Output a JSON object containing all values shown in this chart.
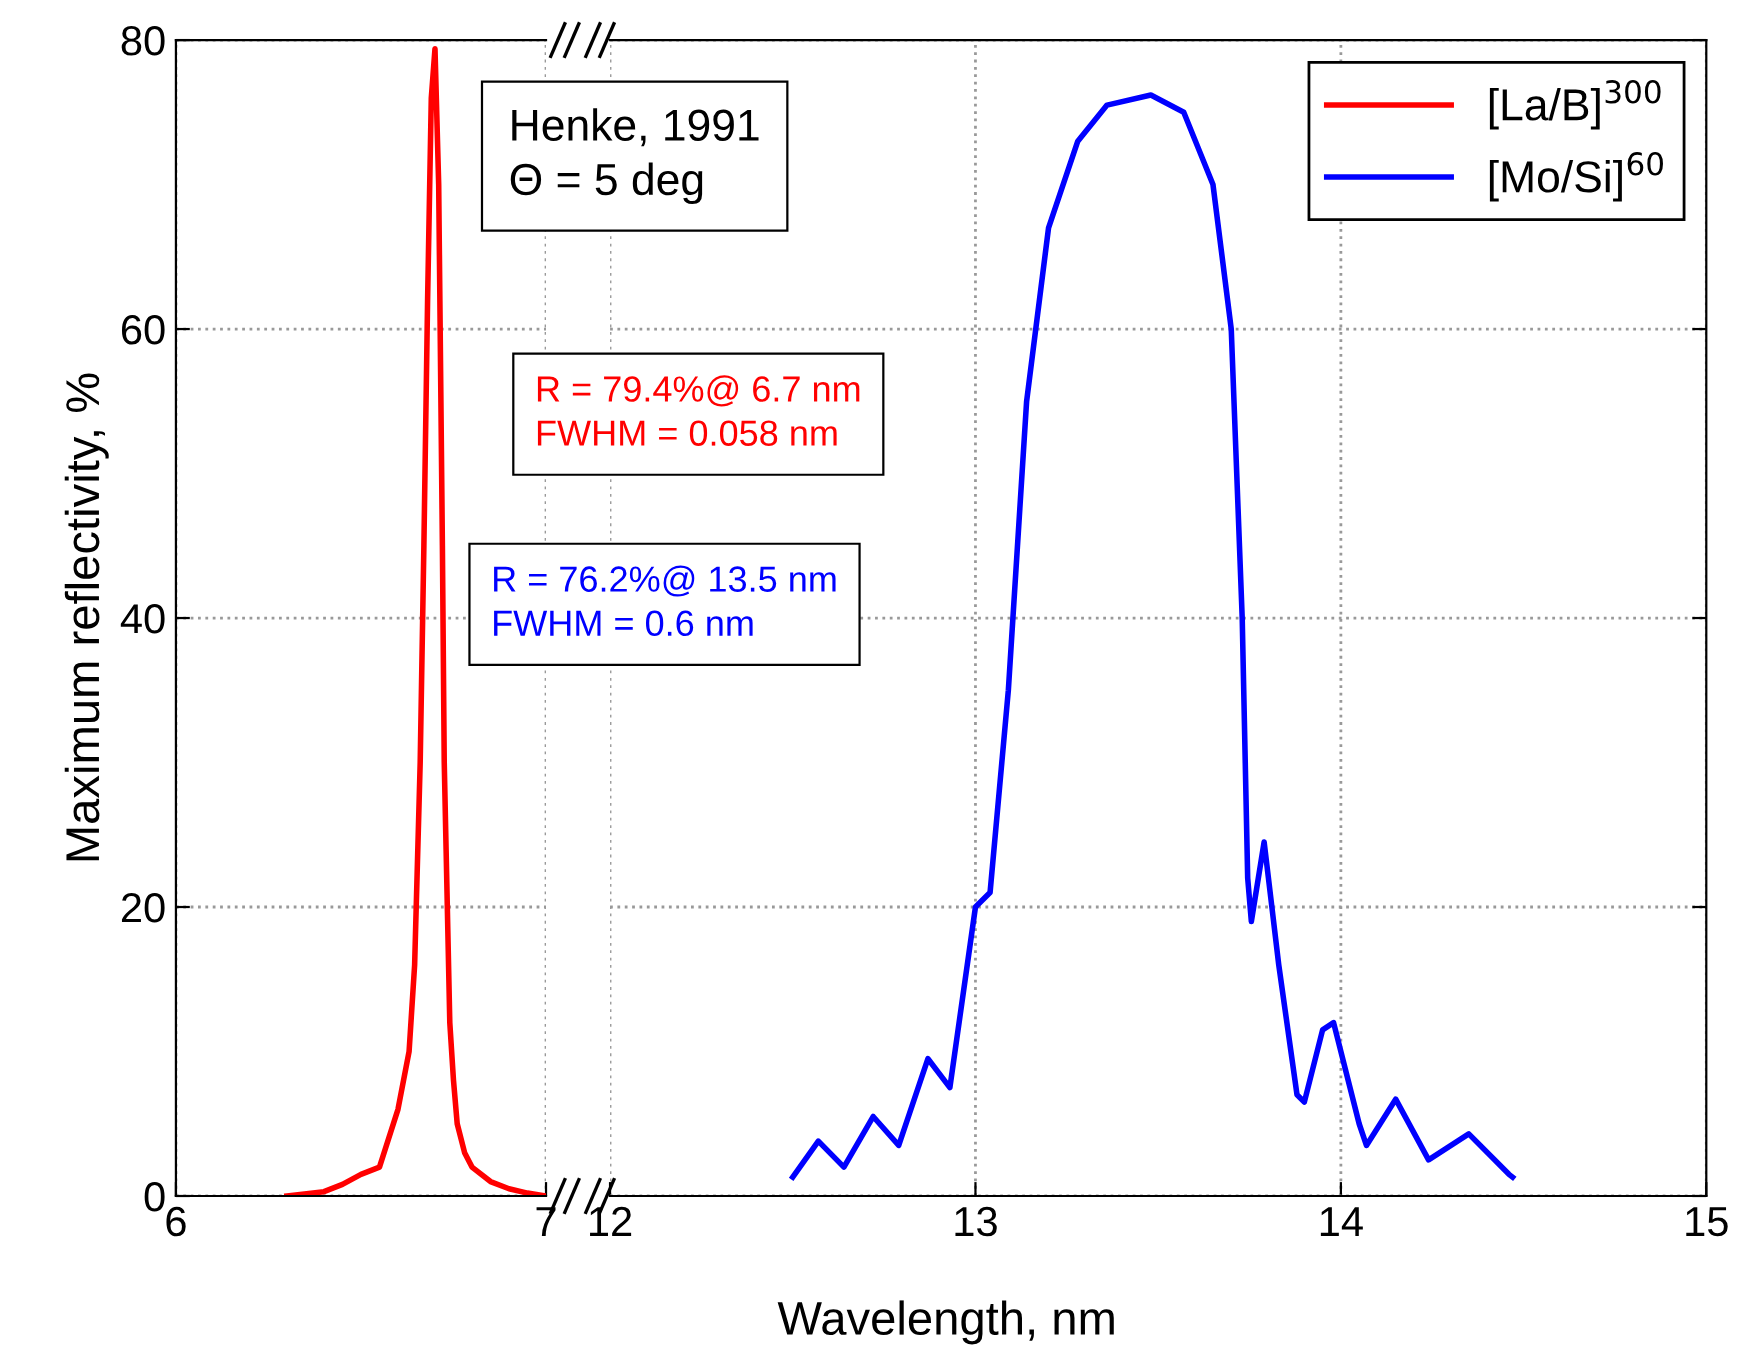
{
  "chart_data": [
    {
      "type": "line",
      "xlabel": "Wavelength, nm",
      "ylabel": "Maximum reflectivity, %",
      "xlim": [
        6,
        7
      ],
      "xticks": [
        6,
        7
      ],
      "ylim": [
        0,
        80
      ],
      "yticks": [
        0,
        20,
        40,
        60,
        80
      ],
      "grid": true,
      "line_style": "solid",
      "marker": "none",
      "annotations": [
        "Henke, 1991\nΘ = 5 deg",
        "R = 79.4%@ 6.7 nm\nFWHM = 0.058 nm"
      ],
      "series": [
        {
          "name": "[La/B]$^{300}$",
          "color": "#ff0000",
          "x": [
            6.3,
            6.4,
            6.45,
            6.5,
            6.55,
            6.6,
            6.63,
            6.645,
            6.66,
            6.67,
            6.68,
            6.69,
            6.7,
            6.71,
            6.72,
            6.725,
            6.73,
            6.74,
            6.75,
            6.76,
            6.78,
            6.8,
            6.85,
            6.9,
            6.95,
            7.0
          ],
          "values": [
            0,
            0.3,
            0.8,
            1.5,
            2,
            6,
            10,
            16,
            30,
            45,
            62,
            76,
            79.4,
            70,
            45,
            30,
            24,
            12,
            8,
            5,
            3,
            2,
            1,
            0.5,
            0.2,
            0
          ]
        }
      ]
    },
    {
      "type": "line",
      "xlim": [
        12,
        15
      ],
      "xticks": [
        12,
        13,
        14,
        15
      ],
      "ylim": [
        0,
        80
      ],
      "yticks": [
        0,
        20,
        40,
        60,
        80
      ],
      "grid": true,
      "tick_labels": "x",
      "legend": "top right",
      "line_style": "solid",
      "marker": "none",
      "annotations": [
        "R = 76.2%@ 13.5 nm\nFWHM = 0.6 nm"
      ],
      "series": [
        {
          "name": "[Mo/Si]$^{60}$",
          "color": "#0000ff",
          "x": [
            12.5,
            12.57,
            12.64,
            12.72,
            12.79,
            12.87,
            12.93,
            13.0,
            13.04,
            13.09,
            13.14,
            13.2,
            13.28,
            13.36,
            13.48,
            13.57,
            13.65,
            13.7,
            13.73,
            13.745,
            13.755,
            13.79,
            13.83,
            13.88,
            13.9,
            13.95,
            13.98,
            14.05,
            14.07,
            14.15,
            14.24,
            14.35,
            14.46,
            14.47
          ],
          "values": [
            1.3,
            3.8,
            2,
            5.5,
            3.5,
            9.5,
            7.5,
            20,
            21,
            35,
            55,
            67,
            73,
            75.5,
            76.2,
            75,
            70,
            60,
            40,
            22,
            19,
            24.5,
            16,
            7,
            6.5,
            11.5,
            12,
            5,
            3.5,
            6.7,
            2.5,
            4.3,
            1.5,
            1.3
          ]
        }
      ]
    }
  ]
}
